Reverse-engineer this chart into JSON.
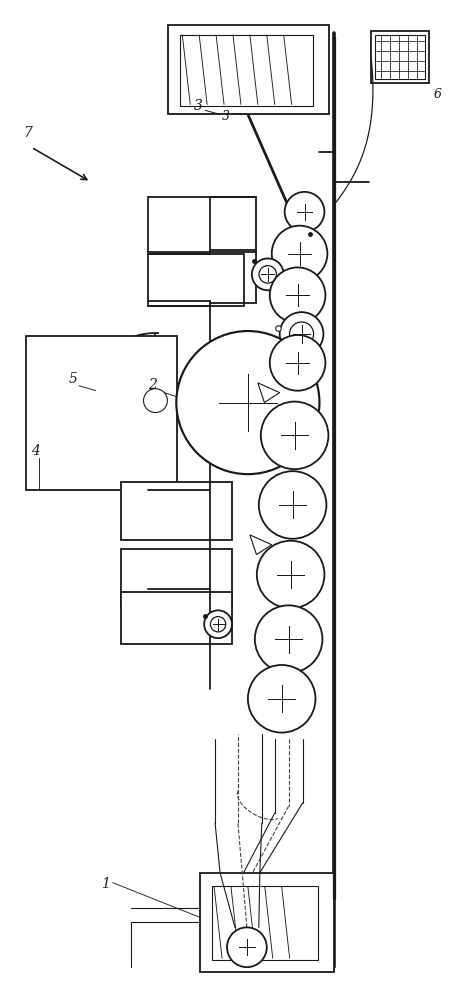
{
  "bg_color": "#ffffff",
  "lc": "#1a1a1a",
  "lw": 1.3,
  "tlw": 0.8,
  "fig_w": 4.58,
  "fig_h": 10.0,
  "dpi": 100,
  "xlim": [
    0,
    458
  ],
  "ylim": [
    0,
    1000
  ]
}
